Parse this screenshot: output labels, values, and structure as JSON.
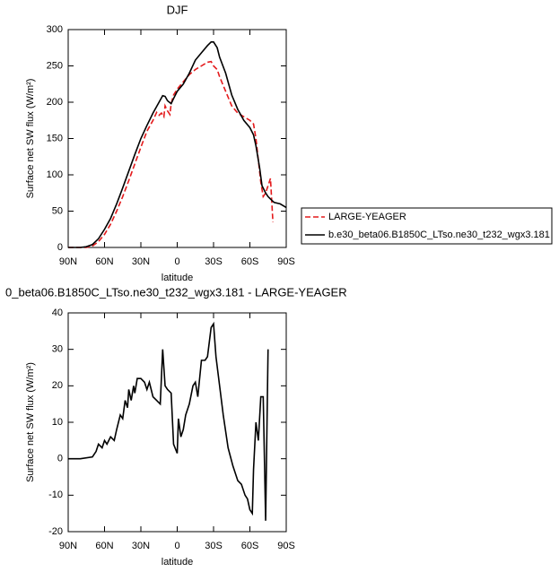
{
  "chart_data": [
    {
      "type": "line",
      "title": "DJF",
      "x_label": "latitude",
      "y_label": "Surface net SW flux (W/m²)",
      "xlim": [
        90,
        -90
      ],
      "xticks": [
        {
          "value": 90,
          "label": "90N"
        },
        {
          "value": 60,
          "label": "60N"
        },
        {
          "value": 30,
          "label": "30N"
        },
        0,
        {
          "value": -30,
          "label": "30S"
        },
        {
          "value": -60,
          "label": "60S"
        },
        {
          "value": -90,
          "label": "90S"
        }
      ],
      "ylim": [
        0,
        300
      ],
      "yticks": [
        0,
        50,
        100,
        150,
        200,
        250,
        300
      ],
      "series": [
        {
          "name": "LARGE-YEAGER",
          "color": "#e41a1c",
          "dash": true,
          "x": [
            90,
            75,
            70,
            65,
            60,
            55,
            50,
            45,
            40,
            35,
            30,
            25,
            20,
            17,
            15,
            13,
            11,
            10,
            8,
            6,
            5,
            3,
            0,
            -5,
            -10,
            -15,
            -20,
            -25,
            -28,
            -30,
            -33,
            -35,
            -40,
            -45,
            -50,
            -55,
            -60,
            -63,
            -65,
            -67,
            -69,
            -71,
            -73,
            -75,
            -77,
            -79
          ],
          "values": [
            0,
            0,
            2,
            8,
            18,
            32,
            50,
            70,
            92,
            115,
            138,
            160,
            175,
            186,
            182,
            185,
            180,
            195,
            188,
            183,
            198,
            210,
            218,
            228,
            238,
            245,
            250,
            255,
            256,
            250,
            245,
            235,
            215,
            195,
            185,
            180,
            175,
            170,
            150,
            120,
            90,
            70,
            75,
            85,
            95,
            35
          ]
        },
        {
          "name": "b.e30_beta06.B1850C_LTso.ne30_t232_wgx3.181",
          "color": "#000000",
          "dash": false,
          "x": [
            90,
            80,
            75,
            70,
            65,
            60,
            55,
            50,
            45,
            40,
            35,
            30,
            25,
            20,
            15,
            12,
            10,
            8,
            5,
            3,
            0,
            -5,
            -10,
            -15,
            -20,
            -25,
            -28,
            -30,
            -33,
            -35,
            -40,
            -45,
            -50,
            -55,
            -60,
            -63,
            -65,
            -68,
            -70,
            -73,
            -75,
            -78,
            -80,
            -85,
            -90
          ],
          "values": [
            0,
            0,
            1,
            4,
            12,
            25,
            40,
            60,
            82,
            105,
            128,
            150,
            168,
            185,
            200,
            209,
            208,
            202,
            198,
            205,
            215,
            225,
            240,
            258,
            268,
            278,
            283,
            283,
            275,
            262,
            240,
            210,
            190,
            175,
            165,
            155,
            140,
            110,
            85,
            75,
            70,
            65,
            62,
            60,
            55
          ]
        }
      ]
    },
    {
      "type": "line",
      "title": "0_beta06.B1850C_LTso.ne30_t232_wgx3.181 - LARGE-YEAGER",
      "x_label": "latitude",
      "y_label": "Surface net SW flux (W/m²)",
      "xlim": [
        90,
        -90
      ],
      "xticks": [
        {
          "value": 90,
          "label": "90N"
        },
        {
          "value": 60,
          "label": "60N"
        },
        {
          "value": 30,
          "label": "30N"
        },
        0,
        {
          "value": -30,
          "label": "30S"
        },
        {
          "value": -60,
          "label": "60S"
        },
        {
          "value": -90,
          "label": "90S"
        }
      ],
      "ylim": [
        -20,
        40
      ],
      "yticks": [
        -20,
        -10,
        0,
        10,
        20,
        30,
        40
      ],
      "series": [
        {
          "color": "#000000",
          "dash": false,
          "x": [
            90,
            80,
            70,
            67,
            65,
            62,
            60,
            58,
            55,
            52,
            50,
            47,
            45,
            43,
            41,
            40,
            38,
            36,
            35,
            33,
            30,
            27,
            25,
            23,
            20,
            17,
            14,
            12,
            10,
            8,
            5,
            3,
            0,
            -1,
            -3,
            -5,
            -7,
            -10,
            -13,
            -15,
            -17,
            -20,
            -23,
            -25,
            -28,
            -30,
            -32,
            -35,
            -38,
            -42,
            -46,
            -50,
            -53,
            -56,
            -58,
            -60,
            -62,
            -63,
            -65,
            -67,
            -69,
            -71,
            -73,
            -75
          ],
          "values": [
            0,
            0,
            0.5,
            2,
            4,
            3,
            5,
            4,
            6,
            5,
            8,
            12,
            11,
            16,
            14,
            19,
            16,
            20,
            18,
            22,
            22,
            21,
            19,
            21,
            17,
            16,
            15,
            30,
            20,
            19,
            18,
            4,
            1.5,
            11,
            6,
            8,
            12,
            15,
            20,
            21,
            17,
            27,
            27,
            28,
            36,
            37,
            28,
            20,
            12,
            3,
            -2,
            -6,
            -7,
            -10,
            -11,
            -14,
            -15,
            -3,
            10,
            5,
            17,
            17,
            -17,
            30
          ]
        }
      ]
    }
  ]
}
